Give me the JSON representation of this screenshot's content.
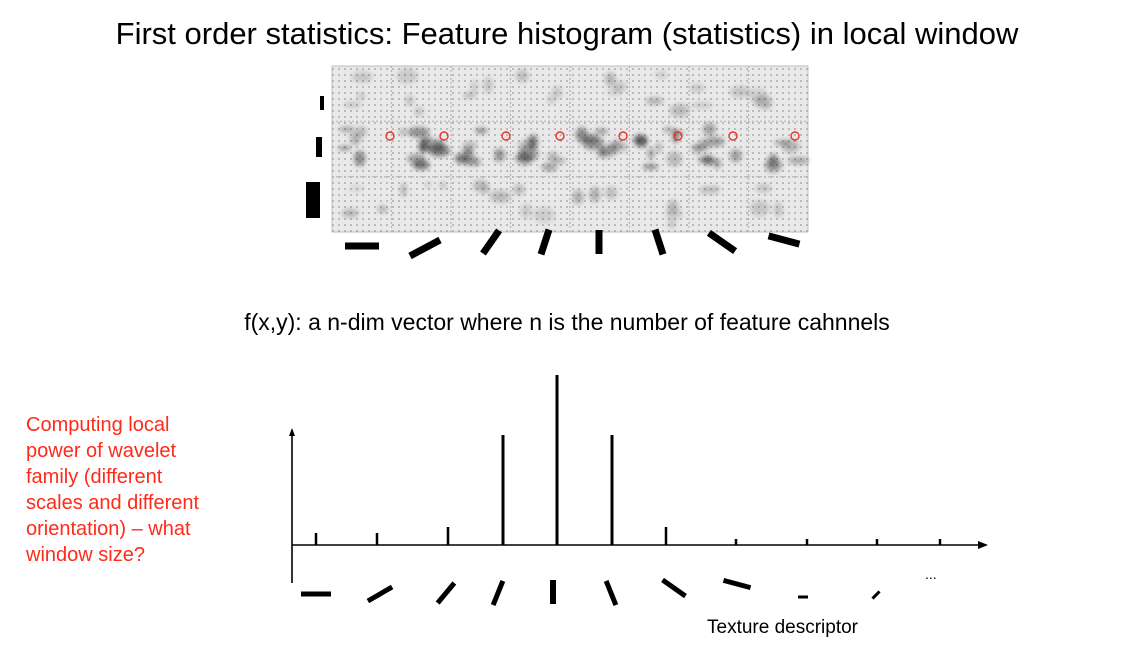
{
  "title": "First order statistics: Feature histogram (statistics) in local window",
  "subtitle": "f(x,y): a n-dim vector where n is the number of feature cahnnels",
  "note": "Computing local\npower of wavelet\nfamily (different\nscales and different\norientation) – what\nwindow size?",
  "x_axis_label": "Texture descriptor",
  "ellipsis": "...",
  "colors": {
    "text": "#000000",
    "note": "#ff2a1a",
    "marker": "#e8332a",
    "grid_background": "#e9e9e9"
  },
  "filter_grid": {
    "rows": 3,
    "columns": 8,
    "scale_bars": [
      "small",
      "medium",
      "large"
    ],
    "orientations_deg": [
      0,
      -30,
      -60,
      -75,
      90,
      75,
      60,
      30
    ],
    "marked_row": 2
  },
  "chart_data": {
    "type": "bar",
    "title": "",
    "xlabel": "Texture descriptor",
    "ylabel": "",
    "values": [
      0.06,
      0.06,
      0.09,
      0.55,
      0.85,
      0.55,
      0.09,
      0.03,
      0.03,
      0.03,
      0.03
    ],
    "icons": [
      {
        "angle": 0,
        "len": 30,
        "w": 5
      },
      {
        "angle": -30,
        "len": 28,
        "w": 5
      },
      {
        "angle": -50,
        "len": 26,
        "w": 5
      },
      {
        "angle": -68,
        "len": 26,
        "w": 5
      },
      {
        "angle": 90,
        "len": 24,
        "w": 6
      },
      {
        "angle": 68,
        "len": 26,
        "w": 5
      },
      {
        "angle": 35,
        "len": 28,
        "w": 5
      },
      {
        "angle": 15,
        "len": 28,
        "w": 5
      },
      {
        "angle": 0,
        "len": 10,
        "w": 3
      },
      {
        "angle": -45,
        "len": 10,
        "w": 3
      }
    ]
  }
}
